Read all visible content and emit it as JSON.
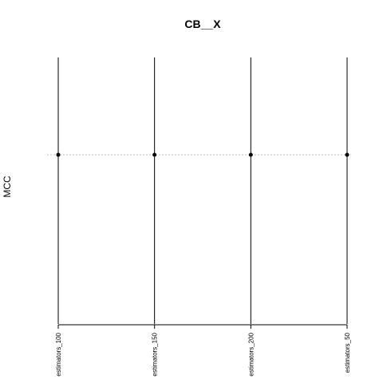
{
  "chart_data": {
    "type": "scatter",
    "title": "CB__X",
    "xlabel": "",
    "ylabel": "MCC",
    "categories": [
      "estimators_100",
      "estimators_150",
      "estimators_200",
      "estimators_50"
    ],
    "series": [
      {
        "values": [
          0,
          0,
          0,
          0
        ]
      }
    ],
    "reference_line": {
      "y": 0,
      "style": "dotted",
      "color": "#bbbbbb"
    },
    "x_axis": "categorical, rotated tick labels",
    "y_axis": "no tick labels shown",
    "grid": false,
    "legend": "none",
    "colors": {
      "points": "#000000",
      "vertical_lines": "#000000",
      "reference_line": "#bbbbbb"
    }
  }
}
